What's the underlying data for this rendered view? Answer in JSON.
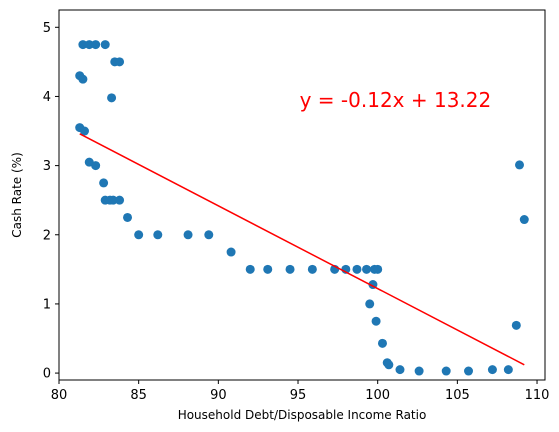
{
  "chart_data": {
    "type": "scatter",
    "title": "",
    "xlabel": "Household Debt/Disposable Income Ratio",
    "ylabel": "Cash Rate (%)",
    "xlim": [
      80.0,
      110.5
    ],
    "ylim": [
      -0.1,
      5.25
    ],
    "x_ticks": [
      80,
      85,
      90,
      95,
      100,
      105,
      110
    ],
    "y_ticks": [
      0,
      1,
      2,
      3,
      4,
      5
    ],
    "grid": false,
    "legend": "none",
    "colors": {
      "points": "#1f77b4",
      "regression_line": "#ff0000",
      "annotation": "#ff0000",
      "axes": "#000000"
    },
    "series": [
      {
        "kind": "scatter",
        "x": [
          81.5,
          81.9,
          82.3,
          82.9,
          83.5,
          83.8,
          81.3,
          81.5,
          83.3,
          81.3,
          81.6,
          81.9,
          82.3,
          82.8,
          82.9,
          83.2,
          83.4,
          83.8,
          84.3,
          85.0,
          86.2,
          88.1,
          89.4,
          90.8,
          92.0,
          93.1,
          94.5,
          95.9,
          97.3,
          98.0,
          98.7,
          99.3,
          99.8,
          100.0,
          99.5,
          99.7,
          99.9,
          100.3,
          100.6,
          100.7,
          101.4,
          102.6,
          104.3,
          105.7,
          107.2,
          108.2,
          108.7,
          108.9,
          109.2
        ],
        "y": [
          4.75,
          4.75,
          4.75,
          4.75,
          4.5,
          4.5,
          4.3,
          4.25,
          3.98,
          3.55,
          3.5,
          3.05,
          3.0,
          2.75,
          2.5,
          2.5,
          2.5,
          2.5,
          2.25,
          2.0,
          2.0,
          2.0,
          2.0,
          1.75,
          1.5,
          1.5,
          1.5,
          1.5,
          1.5,
          1.5,
          1.5,
          1.5,
          1.5,
          1.5,
          1.0,
          1.28,
          0.75,
          0.43,
          0.15,
          0.12,
          0.05,
          0.03,
          0.03,
          0.03,
          0.05,
          0.05,
          0.69,
          3.01,
          2.22
        ]
      },
      {
        "kind": "line",
        "x": [
          81.3,
          109.2
        ],
        "y": [
          3.46,
          0.12
        ]
      }
    ],
    "annotation": "y = -0.12x + 13.22",
    "annotation_position": "upper-center"
  }
}
